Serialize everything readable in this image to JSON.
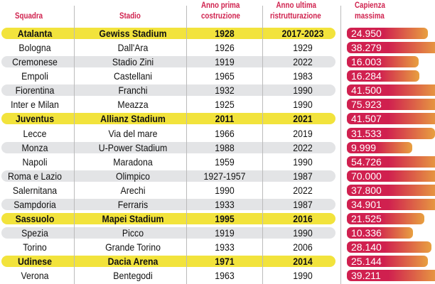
{
  "chart_data": {
    "type": "table",
    "columns": [
      "Squadra",
      "Stadio",
      "Anno prima costruzione",
      "Anno ultima ristrutturazione",
      "Capienza massima"
    ],
    "rows": [
      {
        "team": "Atalanta",
        "stadium": "Gewiss Stadium",
        "built": "1928",
        "renovated": "2017-2023",
        "capacity": "24.950",
        "value": 24950,
        "style": "highlight"
      },
      {
        "team": "Bologna",
        "stadium": "Dall'Ara",
        "built": "1926",
        "renovated": "1929",
        "capacity": "38.279",
        "value": 38279,
        "style": "plain"
      },
      {
        "team": "Cremonese",
        "stadium": "Stadio Zini",
        "built": "1919",
        "renovated": "2022",
        "capacity": "16.003",
        "value": 16003,
        "style": "shade"
      },
      {
        "team": "Empoli",
        "stadium": "Castellani",
        "built": "1965",
        "renovated": "1983",
        "capacity": "16.284",
        "value": 16284,
        "style": "plain"
      },
      {
        "team": "Fiorentina",
        "stadium": "Franchi",
        "built": "1932",
        "renovated": "1990",
        "capacity": "41.500",
        "value": 41500,
        "style": "shade"
      },
      {
        "team": "Inter e Milan",
        "stadium": "Meazza",
        "built": "1925",
        "renovated": "1990",
        "capacity": "75.923",
        "value": 75923,
        "style": "plain"
      },
      {
        "team": "Juventus",
        "stadium": "Allianz Stadium",
        "built": "2011",
        "renovated": "2021",
        "capacity": "41.507",
        "value": 41507,
        "style": "highlight"
      },
      {
        "team": "Lecce",
        "stadium": "Via del mare",
        "built": "1966",
        "renovated": "2019",
        "capacity": "31.533",
        "value": 31533,
        "style": "plain"
      },
      {
        "team": "Monza",
        "stadium": "U-Power Stadium",
        "built": "1988",
        "renovated": "2022",
        "capacity": "9.999",
        "value": 9999,
        "style": "shade"
      },
      {
        "team": "Napoli",
        "stadium": "Maradona",
        "built": "1959",
        "renovated": "1990",
        "capacity": "54.726",
        "value": 54726,
        "style": "plain"
      },
      {
        "team": "Roma e Lazio",
        "stadium": "Olimpico",
        "built": "1927-1957",
        "renovated": "1987",
        "capacity": "70.000",
        "value": 70000,
        "style": "shade"
      },
      {
        "team": "Salernitana",
        "stadium": "Arechi",
        "built": "1990",
        "renovated": "2022",
        "capacity": "37.800",
        "value": 37800,
        "style": "plain"
      },
      {
        "team": "Sampdoria",
        "stadium": "Ferraris",
        "built": "1933",
        "renovated": "1987",
        "capacity": "34.901",
        "value": 34901,
        "style": "shade"
      },
      {
        "team": "Sassuolo",
        "stadium": "Mapei Stadium",
        "built": "1995",
        "renovated": "2016",
        "capacity": "21.525",
        "value": 21525,
        "style": "highlight"
      },
      {
        "team": "Spezia",
        "stadium": "Picco",
        "built": "1919",
        "renovated": "1990",
        "capacity": "10.336",
        "value": 10336,
        "style": "shade"
      },
      {
        "team": "Torino",
        "stadium": "Grande Torino",
        "built": "1933",
        "renovated": "2006",
        "capacity": "28.140",
        "value": 28140,
        "style": "plain"
      },
      {
        "team": "Udinese",
        "stadium": "Dacia Arena",
        "built": "1971",
        "renovated": "2014",
        "capacity": "25.144",
        "value": 25144,
        "style": "highlight"
      },
      {
        "team": "Verona",
        "stadium": "Bentegodi",
        "built": "1963",
        "renovated": "1990",
        "capacity": "39.211",
        "value": 39211,
        "style": "plain"
      }
    ]
  },
  "header": {
    "team": "Squadra",
    "stadium": "Stadio",
    "built_1": "Anno prima",
    "built_2": "costruzione",
    "renovated_1": "Anno ultima",
    "renovated_2": "ristrutturazione",
    "capacity_1": "Capienza",
    "capacity_2": "massima"
  },
  "colors": {
    "accent": "#d0234f",
    "highlight": "#f2e33c",
    "shade": "#e3e4e6",
    "bar_end": "#e8a040"
  }
}
